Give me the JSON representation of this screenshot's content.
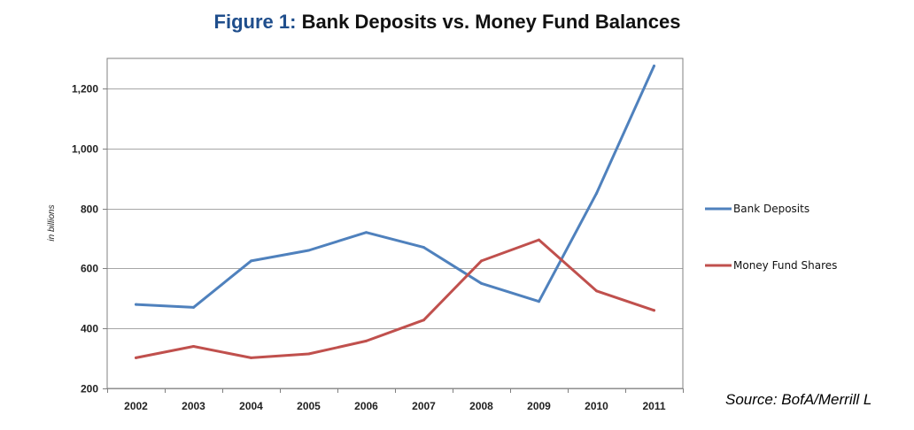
{
  "title": {
    "prefix": "Figure 1:",
    "main": "Bank Deposits vs. Money Fund Balances"
  },
  "source": "Source:  BofA/Merrill L",
  "colors": {
    "title_prefix": "#1f4e8c",
    "bank_deposits": "#4f81bd",
    "money_fund_shares": "#c0504d",
    "gridline": "#a6a6a6",
    "axis": "#808080"
  },
  "chart_data": {
    "type": "line",
    "title": "Figure 1: Bank Deposits vs. Money Fund Balances",
    "ylabel": "in billions",
    "xlabel": "",
    "categories": [
      "2002",
      "2003",
      "2004",
      "2005",
      "2006",
      "2007",
      "2008",
      "2009",
      "2010",
      "2011"
    ],
    "ylim": [
      200,
      1300
    ],
    "yticks": [
      200,
      400,
      600,
      800,
      1000,
      1200
    ],
    "ytick_labels": [
      "200",
      "400",
      "600",
      "800",
      "1,000",
      "1,200"
    ],
    "grid": true,
    "legend_position": "right",
    "series": [
      {
        "name": "Bank Deposits",
        "color": "#4f81bd",
        "values": [
          480,
          470,
          625,
          660,
          720,
          670,
          550,
          490,
          850,
          1275
        ]
      },
      {
        "name": "Money Fund Shares",
        "color": "#c0504d",
        "values": [
          302,
          340,
          302,
          315,
          358,
          428,
          625,
          695,
          525,
          460
        ]
      }
    ]
  }
}
